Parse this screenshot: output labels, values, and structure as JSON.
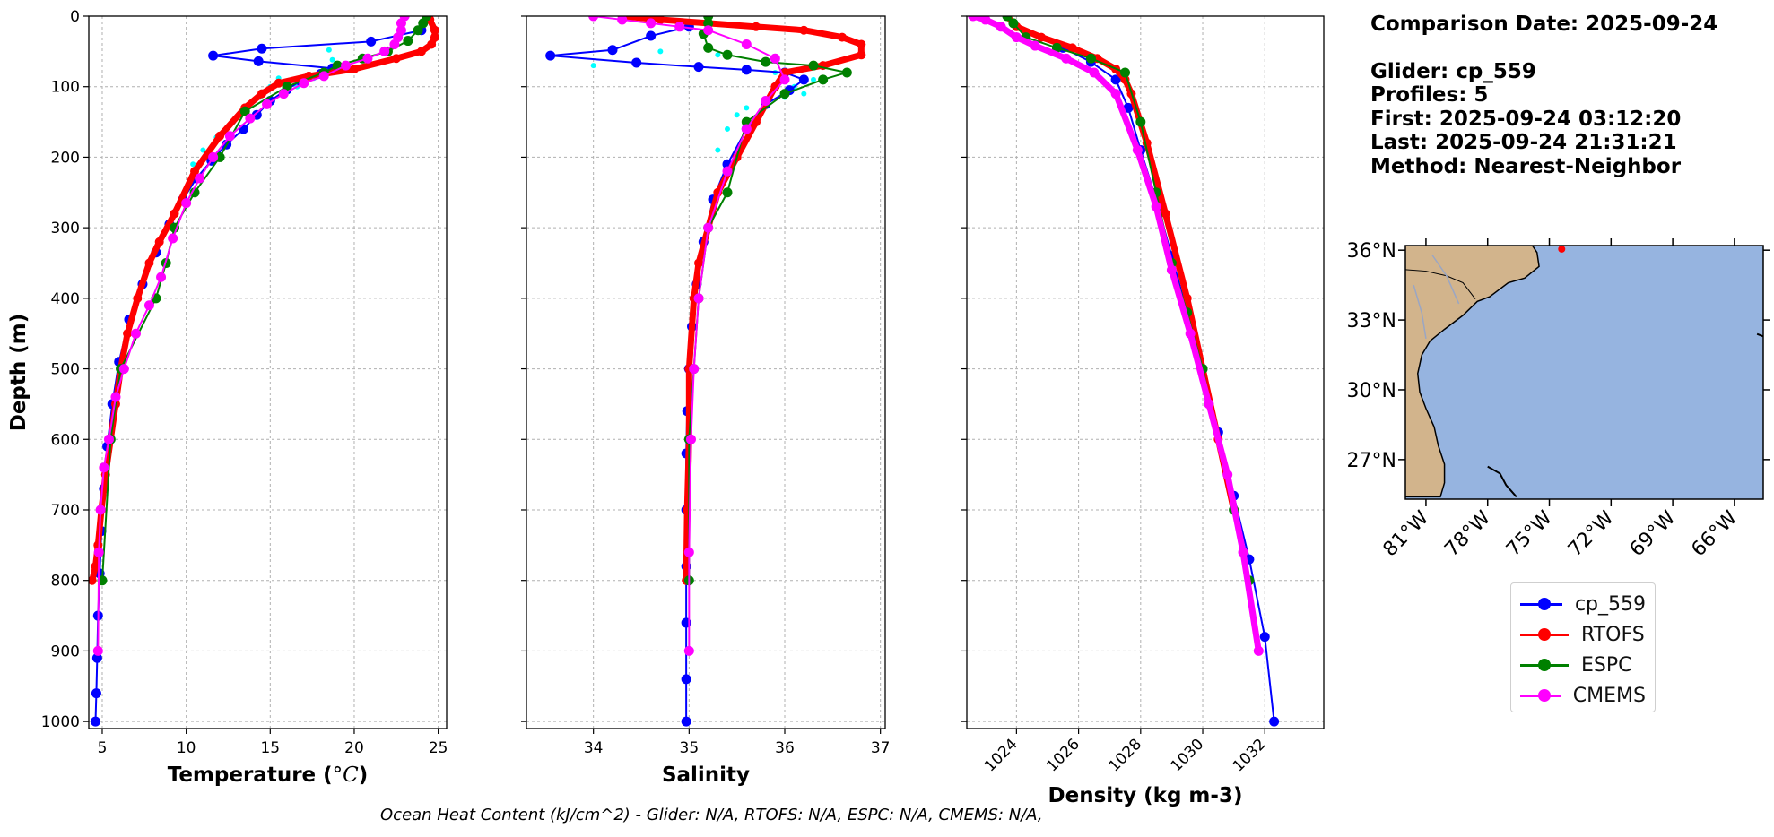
{
  "info": {
    "comparison_date": "Comparison Date: 2025-09-24",
    "glider": "Glider: cp_559",
    "profiles": "Profiles: 5",
    "first": "First: 2025-09-24 03:12:20",
    "last": "Last: 2025-09-24 21:31:21",
    "method": "Method: Nearest-Neighbor"
  },
  "footer": "Ocean Heat Content (kJ/cm^2) - Glider: N/A,  RTOFS: N/A,  ESPC: N/A,  CMEMS: N/A,",
  "colors": {
    "cp_559": "#0000ff",
    "RTOFS": "#ff0000",
    "ESPC": "#008000",
    "CMEMS": "#ff00ff",
    "glider_raw": "#00ffff",
    "land": "#d2b48c",
    "ocean": "#96b4e0"
  },
  "legend": [
    {
      "name": "cp_559",
      "color": "#0000ff"
    },
    {
      "name": "RTOFS",
      "color": "#ff0000"
    },
    {
      "name": "ESPC",
      "color": "#008000"
    },
    {
      "name": "CMEMS",
      "color": "#ff00ff"
    }
  ],
  "map": {
    "lat_labels": [
      "36°N",
      "33°N",
      "30°N",
      "27°N"
    ],
    "lon_labels": [
      "81°W",
      "78°W",
      "75°W",
      "72°W",
      "69°W",
      "66°W"
    ],
    "lat_values": [
      36,
      33,
      30,
      27
    ],
    "lon_values": [
      -81,
      -78,
      -75,
      -72,
      -69,
      -66
    ],
    "extent": {
      "lon": [
        -82,
        -64.6
      ],
      "lat": [
        25.3,
        36.2
      ]
    },
    "glider_lonlat": [
      -74.4,
      36.05
    ]
  },
  "chart_data": [
    {
      "type": "line",
      "title": "",
      "xlabel": "Temperature (°C)",
      "ylabel": "Depth (m)",
      "xlim": [
        4.2,
        25.5
      ],
      "ylim": [
        1010,
        0
      ],
      "xticks": [
        5,
        10,
        15,
        20,
        25
      ],
      "xtick_labels": [
        "5",
        "10",
        "15",
        "20",
        "25"
      ],
      "yticks": [
        0,
        100,
        200,
        300,
        400,
        500,
        600,
        700,
        800,
        900,
        1000
      ],
      "ytick_labels": [
        "0",
        "100",
        "200",
        "300",
        "400",
        "500",
        "600",
        "700",
        "800",
        "900",
        "1000"
      ],
      "grid": true,
      "series": [
        {
          "name": "glider raw",
          "x": [
            18.5,
            18.7,
            18.2,
            17.6,
            16.6,
            15.5,
            15.0,
            14.4,
            13.5,
            12.8,
            11.8,
            11.0,
            10.4
          ],
          "y": [
            48,
            62,
            78,
            88,
            100,
            88,
            100,
            115,
            132,
            150,
            172,
            190,
            210
          ]
        },
        {
          "name": "cp_559",
          "x": [
            24,
            21,
            14.5,
            11.6,
            14.3,
            18.7,
            18,
            16.8,
            16.0,
            15.0,
            14.2,
            13.4,
            12.4,
            11.5,
            10.6,
            9.8,
            9.0,
            8.2,
            7.4,
            6.6,
            6.0,
            5.6,
            5.3,
            5.1,
            4.95,
            4.85,
            4.75,
            4.7,
            4.65,
            4.6
          ],
          "y": [
            20,
            36,
            46,
            56,
            64,
            74,
            82,
            92,
            104,
            120,
            140,
            160,
            182,
            205,
            230,
            260,
            295,
            335,
            380,
            430,
            490,
            550,
            610,
            670,
            730,
            790,
            850,
            910,
            960,
            1000
          ]
        },
        {
          "name": "RTOFS",
          "x": [
            24.5,
            24.8,
            24.8,
            24.6,
            24.0,
            22.5,
            20.0,
            17.3,
            15.5,
            14.5,
            13.5,
            12.0,
            10.5,
            9.3,
            8.4,
            7.8,
            7.1,
            6.5,
            6.1,
            5.8,
            5.5,
            5.2,
            4.95,
            4.75,
            4.6,
            4.4
          ],
          "y": [
            5,
            20,
            30,
            40,
            50,
            60,
            75,
            85,
            95,
            110,
            130,
            170,
            220,
            280,
            320,
            350,
            400,
            450,
            500,
            550,
            600,
            650,
            700,
            750,
            780,
            800
          ]
        },
        {
          "name": "ESPC",
          "x": [
            24.3,
            24.1,
            23.8,
            23.2,
            22.0,
            20.5,
            19.0,
            18.2,
            16.0,
            13.5,
            12.0,
            10.5,
            9.3,
            8.8,
            8.2,
            6.1,
            5.5,
            5.0
          ],
          "y": [
            0,
            10,
            20,
            35,
            50,
            60,
            70,
            80,
            100,
            135,
            200,
            250,
            300,
            350,
            400,
            500,
            600,
            800
          ]
        },
        {
          "name": "CMEMS",
          "x": [
            23.0,
            22.8,
            22.8,
            22.6,
            22.4,
            21.8,
            20.8,
            19.5,
            18.2,
            17.0,
            15.8,
            14.8,
            13.8,
            12.6,
            11.6,
            10.8,
            10.0,
            9.2,
            8.5,
            7.8,
            7.0,
            6.3,
            5.8,
            5.4,
            5.1,
            4.9,
            4.8,
            4.75
          ],
          "y": [
            0,
            10,
            20,
            30,
            40,
            50,
            60,
            70,
            85,
            95,
            110,
            125,
            145,
            170,
            200,
            230,
            265,
            315,
            370,
            410,
            450,
            500,
            540,
            600,
            640,
            700,
            760,
            900
          ]
        }
      ]
    },
    {
      "type": "line",
      "title": "",
      "xlabel": "Salinity",
      "ylabel": "",
      "xlim": [
        33.3,
        37.05
      ],
      "ylim": [
        1010,
        0
      ],
      "xticks": [
        34,
        35,
        36,
        37
      ],
      "xtick_labels": [
        "34",
        "35",
        "36",
        "37"
      ],
      "yticks": [
        0,
        100,
        200,
        300,
        400,
        500,
        600,
        700,
        800,
        900,
        1000
      ],
      "grid": true,
      "series": [
        {
          "name": "glider raw",
          "x": [
            34.0,
            34.7,
            35.3,
            35.9,
            36.1,
            36.3,
            36.2,
            36.0,
            35.8,
            35.6,
            35.5,
            35.4,
            35.3
          ],
          "y": [
            70,
            50,
            55,
            80,
            100,
            90,
            110,
            115,
            120,
            130,
            140,
            160,
            190
          ]
        },
        {
          "name": "cp_559",
          "x": [
            35.0,
            34.6,
            34.2,
            33.55,
            34.45,
            35.1,
            35.6,
            36.0,
            36.2,
            36.05,
            35.8,
            35.6,
            35.4,
            35.25,
            35.15,
            35.08,
            35.03,
            35.0,
            34.98,
            34.97,
            34.97,
            34.97,
            34.97,
            34.97,
            34.97
          ],
          "y": [
            15,
            28,
            48,
            56,
            66,
            72,
            76,
            80,
            90,
            105,
            125,
            160,
            210,
            260,
            320,
            380,
            440,
            500,
            560,
            620,
            700,
            780,
            860,
            940,
            1000
          ]
        },
        {
          "name": "RTOFS",
          "x": [
            34.3,
            34.7,
            35.2,
            35.7,
            36.2,
            36.6,
            36.8,
            36.8,
            36.4,
            36.0,
            35.9,
            35.7,
            35.5,
            35.3,
            35.1,
            35.05,
            35.0,
            35.0,
            34.98,
            34.97
          ],
          "y": [
            0,
            5,
            10,
            15,
            20,
            30,
            40,
            55,
            70,
            80,
            100,
            150,
            200,
            250,
            350,
            400,
            500,
            600,
            700,
            800
          ]
        },
        {
          "name": "ESPC",
          "x": [
            35.2,
            35.2,
            35.15,
            35.2,
            35.4,
            35.8,
            36.3,
            36.65,
            36.4,
            36.0,
            35.6,
            35.4,
            35.2,
            35.1,
            35.05,
            35.0,
            35.0
          ],
          "y": [
            0,
            10,
            25,
            45,
            55,
            65,
            70,
            80,
            90,
            110,
            150,
            250,
            300,
            400,
            500,
            600,
            800
          ]
        },
        {
          "name": "CMEMS",
          "x": [
            34.0,
            34.3,
            34.6,
            34.9,
            35.2,
            35.6,
            35.9,
            36.0,
            35.8,
            35.6,
            35.4,
            35.2,
            35.1,
            35.05,
            35.02,
            35.0,
            35.0
          ],
          "y": [
            0,
            5,
            10,
            15,
            20,
            40,
            60,
            90,
            120,
            160,
            220,
            300,
            400,
            500,
            600,
            760,
            900
          ]
        }
      ]
    },
    {
      "type": "line",
      "title": "",
      "xlabel": "Density (kg m-3)",
      "ylabel": "",
      "xlim": [
        1022.4,
        1033.9
      ],
      "ylim": [
        1010,
        0
      ],
      "xticks": [
        1024,
        1026,
        1028,
        1030,
        1032
      ],
      "xtick_labels": [
        "1024",
        "1026",
        "1028",
        "1030",
        "1032"
      ],
      "yticks": [
        0,
        100,
        200,
        300,
        400,
        500,
        600,
        700,
        800,
        900,
        1000
      ],
      "grid": true,
      "series": [
        {
          "name": "cp_559",
          "x": [
            1025.5,
            1026.4,
            1027.2,
            1027.6,
            1028.0,
            1028.5,
            1029.0,
            1029.5,
            1030.0,
            1030.5,
            1031.0,
            1031.5,
            1032.0,
            1032.3
          ],
          "y": [
            45,
            65,
            90,
            130,
            190,
            260,
            340,
            420,
            500,
            590,
            680,
            770,
            880,
            1000
          ]
        },
        {
          "name": "RTOFS",
          "x": [
            1023.7,
            1024.0,
            1024.8,
            1025.8,
            1026.6,
            1027.2,
            1027.5,
            1027.7,
            1028.2,
            1028.8,
            1029.5,
            1030.0,
            1030.5,
            1031.0
          ],
          "y": [
            0,
            15,
            30,
            45,
            60,
            75,
            90,
            110,
            180,
            280,
            400,
            500,
            600,
            700
          ]
        },
        {
          "name": "ESPC",
          "x": [
            1023.7,
            1023.9,
            1024.3,
            1025.3,
            1026.4,
            1027.5,
            1028.0,
            1028.5,
            1029.0,
            1029.5,
            1030.0,
            1031.0,
            1031.5
          ],
          "y": [
            0,
            10,
            30,
            45,
            60,
            80,
            150,
            250,
            350,
            420,
            500,
            700,
            800
          ]
        },
        {
          "name": "CMEMS",
          "x": [
            1022.6,
            1023.0,
            1023.5,
            1024.0,
            1024.6,
            1025.6,
            1026.5,
            1027.2,
            1027.9,
            1028.5,
            1029.0,
            1029.6,
            1030.2,
            1030.8,
            1031.3,
            1031.8
          ],
          "y": [
            0,
            5,
            15,
            30,
            42,
            60,
            80,
            110,
            190,
            270,
            360,
            450,
            550,
            650,
            760,
            900
          ]
        }
      ]
    }
  ]
}
